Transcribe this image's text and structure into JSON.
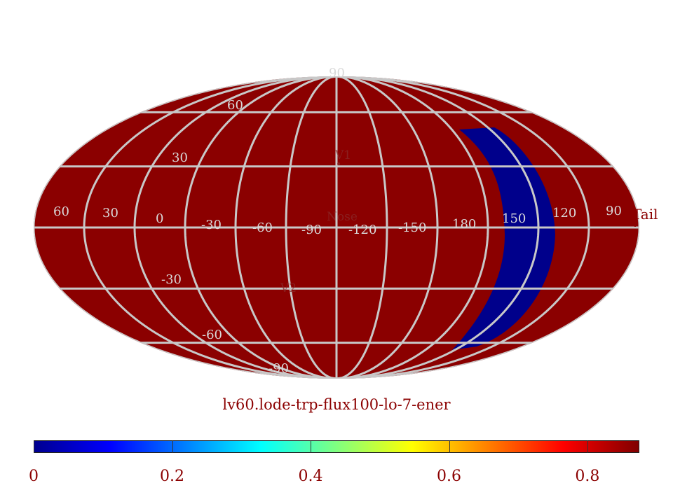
{
  "title": "lv60.lode-trp-flux100-lo-7-ener",
  "projection": "mollweide",
  "colors": {
    "map_fill": "#8b0000",
    "region_fill": "#00008b",
    "grid": "#c8c8c8"
  },
  "region": {
    "value": 0,
    "label": "blue crescent region"
  },
  "grid_labels": {
    "latitude": [
      "90",
      "60",
      "30",
      "-30",
      "-60",
      "-90"
    ],
    "longitude": [
      "60",
      "30",
      "0",
      "-30",
      "-60",
      "-90",
      "-120",
      "-150",
      "180",
      "150",
      "120",
      "90"
    ]
  },
  "markers": {
    "v1": "V1",
    "v2": "V2",
    "nose": "Nose",
    "tail": "Tail"
  },
  "colorbar": {
    "min": 0,
    "max": 0.875,
    "colormap": "jet",
    "ticks": [
      0,
      0.2,
      0.4,
      0.6,
      0.8
    ],
    "tick_labels": [
      "0",
      "0.2",
      "0.4",
      "0.6",
      "0.8"
    ]
  }
}
